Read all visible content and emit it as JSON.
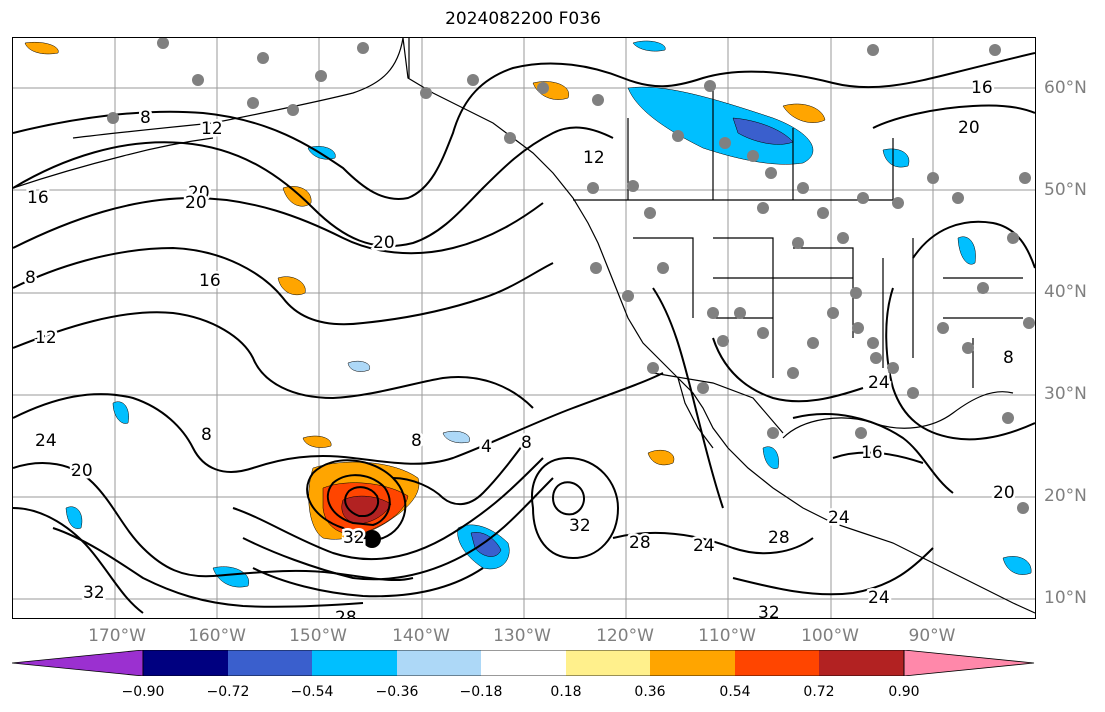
{
  "title": "2024082200 F036",
  "lon_labels": [
    "170°W",
    "160°W",
    "150°W",
    "140°W",
    "130°W",
    "120°W",
    "110°W",
    "100°W",
    "90°W"
  ],
  "lat_labels": [
    "60°N",
    "50°N",
    "40°N",
    "30°N",
    "20°N",
    "10°N"
  ],
  "contour_labels": [
    "8",
    "12",
    "16",
    "20",
    "20",
    "20",
    "16",
    "8",
    "12",
    "24",
    "20",
    "32",
    "8",
    "8",
    "4",
    "8",
    "32",
    "32",
    "28",
    "24",
    "28",
    "24",
    "16",
    "24",
    "20",
    "32",
    "24",
    "8",
    "12",
    "16",
    "20",
    "28"
  ],
  "colorbar": {
    "tick_labels": [
      "−0.90",
      "−0.72",
      "−0.54",
      "−0.36",
      "−0.18",
      "0.18",
      "0.36",
      "0.54",
      "0.72",
      "0.90"
    ],
    "colors": [
      "#9b30d0",
      "#000080",
      "#3a5fcd",
      "#00bfff",
      "#add8f7",
      "#ffffff",
      "#fff08c",
      "#ffa500",
      "#ff4500",
      "#b22222",
      "#ff88aa"
    ]
  }
}
